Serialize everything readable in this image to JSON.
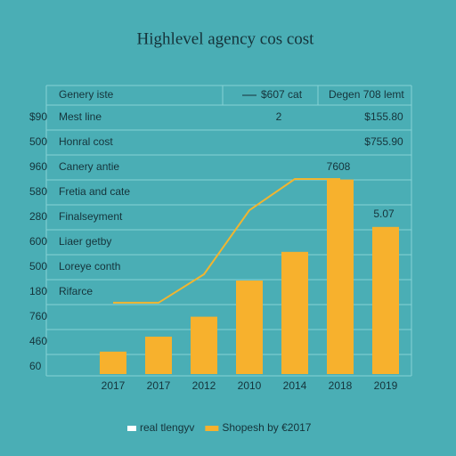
{
  "chart_data": {
    "type": "bar",
    "title": "Highlevel agency cos cost",
    "header": [
      "Genery iste",
      "$607 cat",
      "Degen 708 lemt"
    ],
    "row_labels": [
      "Mest line",
      "Honral cost",
      "Canery antie",
      "Fretia and cate",
      "Finalseyment",
      "Liaer getby",
      "Loreye conth",
      "Rifarce"
    ],
    "side_values": [
      "2",
      "$155.80",
      "$755.90"
    ],
    "annotations": [
      "7608",
      "5.07"
    ],
    "categories": [
      "2017",
      "2017",
      "2012",
      "2010",
      "2014",
      "2018",
      "2019"
    ],
    "series": [
      {
        "name": "Shopesh by €2017",
        "type": "bar",
        "color": "#f7b12d",
        "values": [
          0.9,
          1.5,
          2.3,
          3.75,
          4.9,
          7.8,
          5.9
        ]
      },
      {
        "name": "real tlengyv",
        "type": "line",
        "color": "#f2b52f",
        "values": [
          2.86,
          2.86,
          4.0,
          6.57,
          7.82,
          7.82,
          null
        ]
      }
    ],
    "ylim": [
      0,
      11
    ],
    "yticks": [
      {
        "value": 10.3,
        "label": "$90"
      },
      {
        "value": 9.3,
        "label": "500"
      },
      {
        "value": 8.3,
        "label": "960"
      },
      {
        "value": 7.3,
        "label": "580"
      },
      {
        "value": 6.3,
        "label": "280"
      },
      {
        "value": 5.3,
        "label": "600"
      },
      {
        "value": 4.3,
        "label": "500"
      },
      {
        "value": 3.3,
        "label": "180"
      },
      {
        "value": 2.3,
        "label": "760"
      },
      {
        "value": 1.3,
        "label": "460"
      },
      {
        "value": 0.3,
        "label": "60"
      }
    ]
  }
}
